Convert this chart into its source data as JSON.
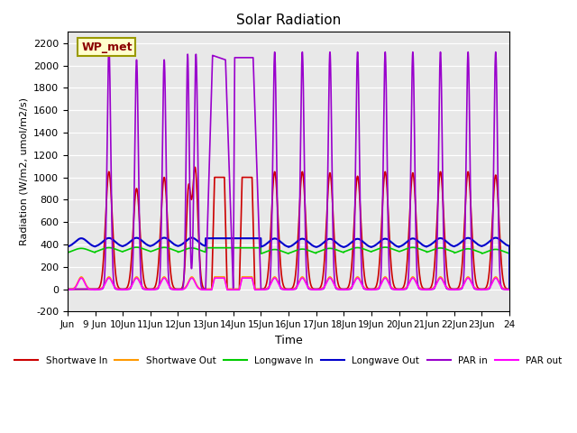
{
  "title": "Solar Radiation",
  "xlabel": "Time",
  "ylabel": "Radiation (W/m2, umol/m2/s)",
  "ylim": [
    -200,
    2300
  ],
  "bg_color": "#e8e8e8",
  "annotation": "WP_met",
  "annotation_color": "#8b0000",
  "annotation_bg": "#ffffcc",
  "annotation_border": "#999900",
  "series": {
    "shortwave_in": {
      "label": "Shortwave In",
      "color": "#cc0000"
    },
    "shortwave_out": {
      "label": "Shortwave Out",
      "color": "#ff9900"
    },
    "longwave_in": {
      "label": "Longwave In",
      "color": "#00cc00"
    },
    "longwave_out": {
      "label": "Longwave Out",
      "color": "#0000cc"
    },
    "par_in": {
      "label": "PAR in",
      "color": "#9900cc"
    },
    "par_out": {
      "label": "PAR out",
      "color": "#ff00ff"
    }
  },
  "xtick_labels": [
    "Jun",
    "9 Jun",
    "10Jun",
    "11Jun",
    "12Jun",
    "13Jun",
    "14Jun",
    "15Jun",
    "16Jun",
    "17Jun",
    "18Jun",
    "19Jun",
    "20Jun",
    "21Jun",
    "22Jun",
    "23Jun",
    "24"
  ],
  "ytick_values": [
    -200,
    0,
    200,
    400,
    600,
    800,
    1000,
    1200,
    1400,
    1600,
    1800,
    2000,
    2200
  ]
}
